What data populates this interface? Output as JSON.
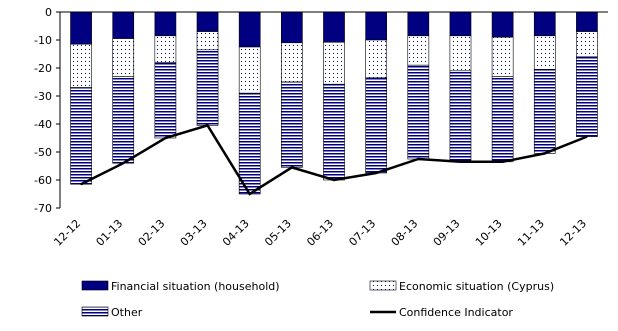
{
  "chart_data": {
    "type": "bar",
    "stacked": true,
    "categories": [
      "12-12",
      "01-13",
      "02-13",
      "03-13",
      "04-13",
      "05-13",
      "06-13",
      "07-13",
      "08-13",
      "09-13",
      "10-13",
      "11-13",
      "12-13"
    ],
    "series": [
      {
        "name": "Financial situation (household)",
        "kind": "bar",
        "color": "#000080",
        "pattern": "solid",
        "values": [
          -11.5,
          -9.5,
          -8.5,
          -7,
          -12.5,
          -11,
          -10.8,
          -10,
          -8.5,
          -8.5,
          -9,
          -8.5,
          -7
        ]
      },
      {
        "name": "Economic situation (Cyprus)",
        "kind": "bar",
        "color": "#000080",
        "pattern": "dots",
        "values": [
          -15.5,
          -13.5,
          -9.5,
          -6.5,
          -16.5,
          -14,
          -15,
          -13.5,
          -10.5,
          -12.5,
          -14,
          -12,
          -9
        ]
      },
      {
        "name": "Other",
        "kind": "bar",
        "color": "#000080",
        "pattern": "hlines",
        "values": [
          -34.5,
          -31,
          -27,
          -27,
          -36,
          -30.5,
          -34.2,
          -34,
          -33.5,
          -32.5,
          -30.5,
          -30,
          -28.5
        ]
      },
      {
        "name": "Confidence Indicator",
        "kind": "line",
        "color": "#000000",
        "values": [
          -61.5,
          -54,
          -45,
          -40.5,
          -65,
          -55.5,
          -60,
          -57.5,
          -52.5,
          -53.5,
          -53.5,
          -50.5,
          -44.5
        ]
      }
    ],
    "xlabel": "",
    "ylabel": "",
    "ylim": [
      -70,
      0
    ],
    "yticks": [
      0,
      -10,
      -20,
      -30,
      -40,
      -50,
      -60,
      -70
    ],
    "grid": false,
    "legend": "bottom"
  }
}
